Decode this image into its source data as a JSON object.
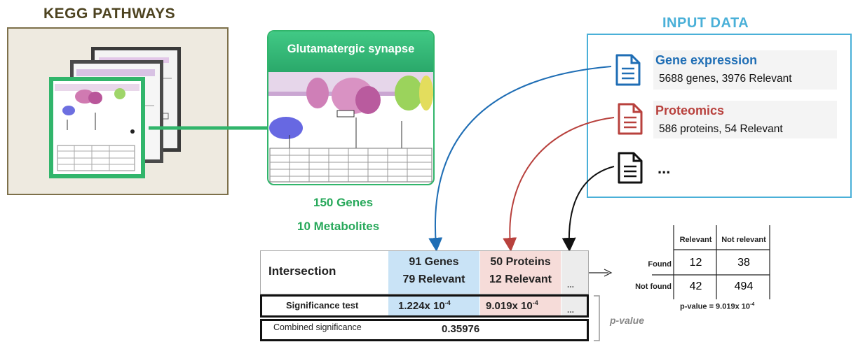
{
  "kegg": {
    "title": "KEGG PATHWAYS"
  },
  "pathway": {
    "name": "Glutamatergic synapse",
    "genes": "150 Genes",
    "metabolites": "10 Metabolites"
  },
  "input": {
    "title": "INPUT DATA",
    "entries": [
      {
        "title": "Gene expression",
        "subtitle": "5688 genes, 3976 Relevant",
        "color": "#1f6eb5"
      },
      {
        "title": "Proteomics",
        "subtitle": "586 proteins, 54 Relevant",
        "color": "#b8413d"
      },
      {
        "title": "...",
        "subtitle": "",
        "color": "#111111"
      }
    ]
  },
  "results": {
    "intersection_label": "Intersection",
    "significance_label": "Significance test",
    "combined_label": "Combined significance",
    "genes_count": "91 Genes",
    "genes_relevant": "79 Relevant",
    "proteins_count": "50 Proteins",
    "proteins_relevant": "12 Relevant",
    "ellipsis": "...",
    "genes_pvalue_mantissa": "1.224x 10",
    "genes_pvalue_exp": "-4",
    "proteins_pvalue_mantissa": "9.019x 10",
    "proteins_pvalue_exp": "-4",
    "combined_value": "0.35976",
    "pvalue_label": "p-value"
  },
  "contingency": {
    "col_headers": [
      "Relevant",
      "Not relevant"
    ],
    "rows": [
      {
        "label": "Found",
        "values": [
          "12",
          "38"
        ]
      },
      {
        "label": "Not found",
        "values": [
          "42",
          "494"
        ]
      }
    ],
    "pvalue_text": "p-value = 9.019x 10",
    "pvalue_exp": "-4"
  },
  "colors": {
    "gene_blue": "#1f6eb5",
    "protein_red": "#b8413d",
    "green": "#27a85a",
    "cell_blue": "#c9e3f6",
    "cell_pink": "#f6dcd9"
  }
}
